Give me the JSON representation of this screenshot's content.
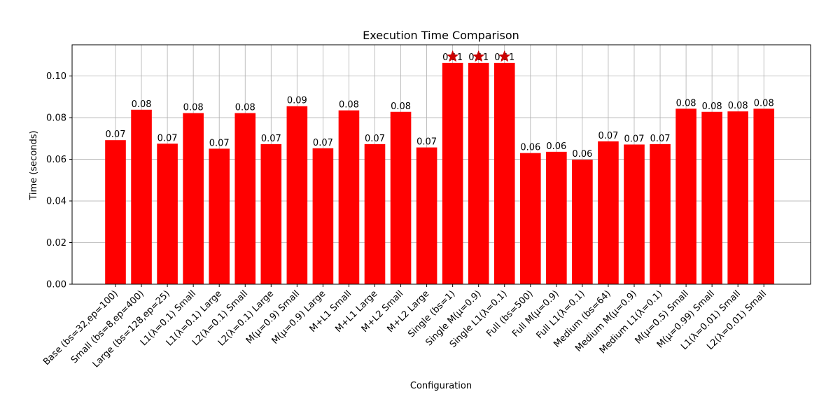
{
  "chart_data": {
    "type": "bar",
    "title": "Execution Time Comparison",
    "xlabel": "Configuration",
    "ylabel": "Time (seconds)",
    "ylim": [
      0,
      0.115
    ],
    "yticks": [
      "0.00",
      "0.02",
      "0.04",
      "0.06",
      "0.08",
      "0.10"
    ],
    "grid": true,
    "bar_color": "#ff0000",
    "marker_color": "#cc0000",
    "categories": [
      "Base (bs=32,ep=100)",
      "Small (bs=8,ep=400)",
      "Large (bs=128,ep=25)",
      "L1(λ=0.1) Small",
      "L1(λ=0.1) Large",
      "L2(λ=0.1) Small",
      "L2(λ=0.1) Large",
      "M(μ=0.9) Small",
      "M(μ=0.9) Large",
      "M+L1 Small",
      "M+L1 Large",
      "M+L2 Small",
      "M+L2 Large",
      "Single (bs=1)",
      "Single M(μ=0.9)",
      "Single L1(λ=0.1)",
      "Full (bs=500)",
      "Full M(μ=0.9)",
      "Full L1(λ=0.1)",
      "Medium (bs=64)",
      "Medium M(μ=0.9)",
      "Medium L1(λ=0.1)",
      "M(μ=0.5) Small",
      "M(μ=0.99) Small",
      "L1(λ=0.01) Small",
      "L2(λ=0.01) Small"
    ],
    "values": [
      0.0692,
      0.0838,
      0.0675,
      0.0822,
      0.0651,
      0.0822,
      0.0673,
      0.0855,
      0.0653,
      0.0835,
      0.0673,
      0.0828,
      0.0657,
      0.1063,
      0.1063,
      0.1063,
      0.063,
      0.0636,
      0.0598,
      0.0686,
      0.0671,
      0.0673,
      0.0843,
      0.0828,
      0.083,
      0.0843
    ],
    "data_labels": [
      "0.07",
      "0.08",
      "0.07",
      "0.08",
      "0.07",
      "0.08",
      "0.07",
      "0.09",
      "0.07",
      "0.08",
      "0.07",
      "0.08",
      "0.07",
      "0.11",
      "0.11",
      "0.11",
      "0.06",
      "0.06",
      "0.06",
      "0.07",
      "0.07",
      "0.07",
      "0.08",
      "0.08",
      "0.08",
      "0.08"
    ],
    "highlighted": [
      13,
      14,
      15
    ]
  }
}
